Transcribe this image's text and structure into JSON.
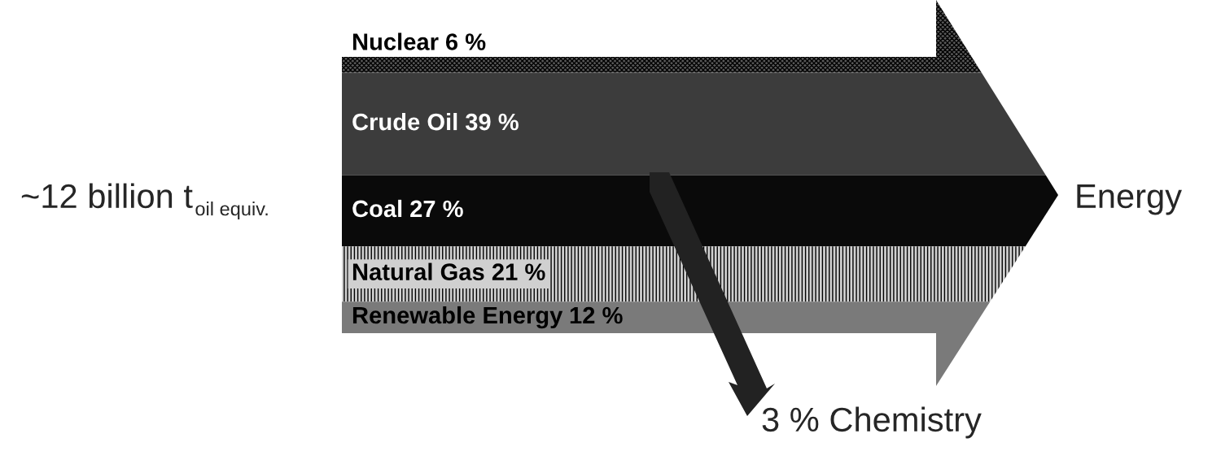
{
  "chart_data": {
    "type": "other",
    "categories": [
      "Nuclear",
      "Crude Oil",
      "Coal",
      "Natural Gas",
      "Renewable Energy"
    ],
    "values": [
      6,
      39,
      27,
      21,
      12
    ],
    "value_labels": [
      "6 %",
      "39 %",
      "27 %",
      "21 %",
      "12 %"
    ],
    "colors": [
      "#5a5a5a",
      "#3c3c3c",
      "#0a0a0a",
      "#d0d0d0",
      "#7a7a7a"
    ],
    "annotations": [
      "~12 billion t$_{oil equiv.}$",
      "Energy",
      "3 % Chemistry"
    ]
  }
}
